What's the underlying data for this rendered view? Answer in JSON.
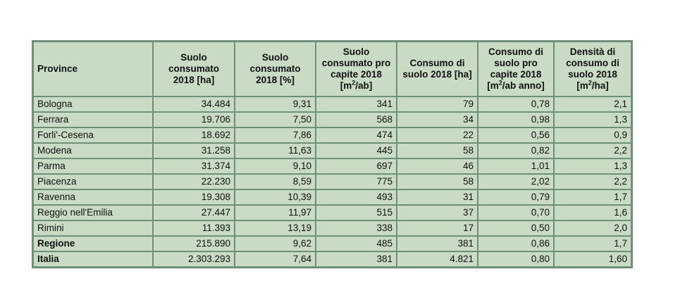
{
  "headers": [
    {
      "pre": "Province"
    },
    {
      "pre": "Suolo consumato 2018 [ha]"
    },
    {
      "pre": "Suolo consumato 2018 [%]"
    },
    {
      "pre": "Suolo consumato pro capite 2018 [m",
      "sup": "2",
      "post": "/ab]"
    },
    {
      "pre": "Consumo di suolo 2018 [ha]"
    },
    {
      "pre": "Consumo di suolo pro capite 2018 [m",
      "sup": "2",
      "post": "/ab anno]"
    },
    {
      "pre": "Densità di consumo di suolo 2018 [m",
      "sup": "2",
      "post": "/ha]"
    }
  ],
  "rows": [
    [
      "Bologna",
      "34.484",
      "9,31",
      "341",
      "79",
      "0,78",
      "2,1"
    ],
    [
      "Ferrara",
      "19.706",
      "7,50",
      "568",
      "34",
      "0,98",
      "1,3"
    ],
    [
      "Forli'-Cesena",
      "18.692",
      "7,86",
      "474",
      "22",
      "0,56",
      "0,9"
    ],
    [
      "Modena",
      "31.258",
      "11,63",
      "445",
      "58",
      "0,82",
      "2,2"
    ],
    [
      "Parma",
      "31.374",
      "9,10",
      "697",
      "46",
      "1,01",
      "1,3"
    ],
    [
      "Piacenza",
      "22.230",
      "8,59",
      "775",
      "58",
      "2,02",
      "2,2"
    ],
    [
      "Ravenna",
      "19.308",
      "10,39",
      "493",
      "31",
      "0,79",
      "1,7"
    ],
    [
      "Reggio nell'Emilia",
      "27.447",
      "11,97",
      "515",
      "37",
      "0,70",
      "1,6"
    ],
    [
      "Rimini",
      "11.393",
      "13,19",
      "338",
      "17",
      "0,50",
      "2,0"
    ],
    [
      "Regione",
      "215.890",
      "9,62",
      "485",
      "381",
      "0,86",
      "1,7"
    ],
    [
      "Italia",
      "2.303.293",
      "7,64",
      "381",
      "4.821",
      "0,80",
      "1,60"
    ]
  ],
  "bold_rows": [
    9,
    10
  ]
}
